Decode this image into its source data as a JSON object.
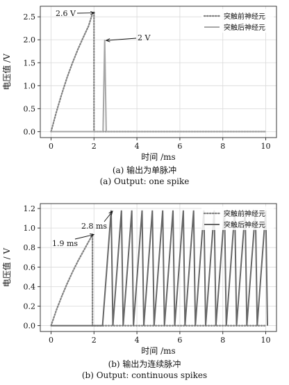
{
  "chart_data": [
    {
      "type": "line",
      "xlabel": "时间 /ms",
      "ylabel": "电压值 /V",
      "xlim": [
        -0.5,
        10.5
      ],
      "ylim": [
        -0.13,
        2.73
      ],
      "xticks": [
        0,
        2,
        4,
        6,
        8,
        10
      ],
      "xtick_labels": [
        "0",
        "2",
        "4",
        "6",
        "8",
        "10"
      ],
      "yticks": [
        0.0,
        0.5,
        1.0,
        1.5,
        2.0,
        2.5
      ],
      "ytick_labels": [
        "0.0",
        "0.5",
        "1.0",
        "1.5",
        "2.0",
        "2.5"
      ],
      "grid": true,
      "legend_position": "top-right",
      "series": [
        {
          "name": "突触前神经元",
          "style": "dotted",
          "color": "#808080",
          "x": [
            0,
            0.25,
            0.5,
            0.75,
            1.0,
            1.25,
            1.5,
            1.75,
            1.95,
            2.0,
            2.0,
            10
          ],
          "y": [
            0,
            0.43,
            0.82,
            1.18,
            1.5,
            1.79,
            2.05,
            2.3,
            2.6,
            2.6,
            0,
            0
          ]
        },
        {
          "name": "突触后神经元",
          "style": "solid",
          "color": "#a6a6a6",
          "x": [
            0,
            2.42,
            2.5,
            2.57,
            10
          ],
          "y": [
            0,
            0,
            2.0,
            0,
            0
          ]
        }
      ],
      "annotations": [
        {
          "text": "2.6 V",
          "x": 1.95,
          "y": 2.6
        },
        {
          "text": "2 V",
          "x": 2.5,
          "y": 2.0
        }
      ]
    },
    {
      "type": "line",
      "xlabel": "时间 /ms",
      "ylabel": "电压值 / V",
      "xlim": [
        -0.5,
        10.5
      ],
      "ylim": [
        -0.06,
        1.25
      ],
      "xticks": [
        0,
        2,
        4,
        6,
        8,
        10
      ],
      "xtick_labels": [
        "0",
        "2",
        "4",
        "6",
        "8",
        "10"
      ],
      "yticks": [
        0.0,
        0.2,
        0.4,
        0.6,
        0.8,
        1.0,
        1.2
      ],
      "ytick_labels": [
        "0.0",
        "0.2",
        "0.4",
        "0.6",
        "0.8",
        "1.0",
        "1.2"
      ],
      "grid": true,
      "legend_position": "top-right",
      "series": [
        {
          "name": "突触前神经元",
          "style": "dotted",
          "color": "#808080",
          "x": [
            0,
            0.25,
            0.5,
            0.75,
            1.0,
            1.25,
            1.5,
            1.75,
            1.9,
            1.93,
            1.93,
            10
          ],
          "y": [
            0,
            0.16,
            0.3,
            0.43,
            0.55,
            0.66,
            0.76,
            0.86,
            0.92,
            0.94,
            0,
            0
          ]
        },
        {
          "name": "突触后神经元",
          "style": "solid",
          "color": "#666666",
          "spikes": {
            "start_x": 2.4,
            "first_peak_x": 2.8,
            "peak_y": 1.18,
            "rise_ms": 0.4,
            "fall_ms": 0.08,
            "end_x": 10.0
          }
        }
      ],
      "annotations": [
        {
          "text": "1.9 ms",
          "x": 1.93,
          "y": 0.94
        },
        {
          "text": "2.8 ms",
          "x": 2.8,
          "y": 1.18
        }
      ]
    }
  ],
  "captions": {
    "a_cn": "(a) 输出为单脉冲",
    "a_en": "(a) Output: one spike",
    "b_cn": "(b) 输出为连续脉冲",
    "b_en": "(b) Output: continuous spikes"
  }
}
